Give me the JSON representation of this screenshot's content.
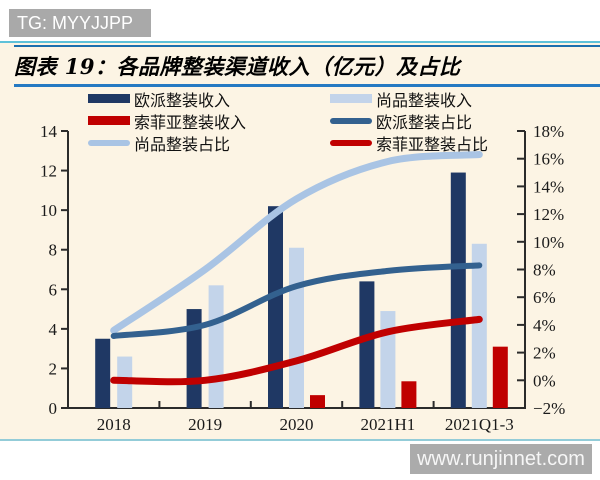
{
  "header": {
    "badge": "TG: MYYJJPP",
    "title": "图表 19：各品牌整装渠道收入（亿元）及占比"
  },
  "footer": {
    "watermark": "www.runjinnet.com"
  },
  "colors": {
    "card_bg": "#fcf4e4",
    "rule_cyan": "#5ec1d9",
    "rule_navy": "#1c6fae",
    "title_underline": "#2579c2",
    "card_bottom_border": "#93ccd8",
    "badge_bg": "#a9a9a9",
    "watermark_bg": "#ababab",
    "axis": "#2b2b2b",
    "navy_bar": "#1f3864",
    "light_blue_bar": "#c3d4ea",
    "red": "#c00000",
    "steel_line": "#33618f",
    "light_blue_line": "#a9c4e4"
  },
  "legend": [
    {
      "label": "欧派整装收入",
      "swatch": "bar",
      "color": "#1f3864"
    },
    {
      "label": "尚品整装收入",
      "swatch": "bar",
      "color": "#c3d4ea"
    },
    {
      "label": "索菲亚整装收入",
      "swatch": "bar",
      "color": "#c00000"
    },
    {
      "label": "欧派整装占比",
      "swatch": "line",
      "color": "#33618f"
    },
    {
      "label": "尚品整装占比",
      "swatch": "line",
      "color": "#a9c4e4"
    },
    {
      "label": "索菲亚整装占比",
      "swatch": "line",
      "color": "#c00000"
    }
  ],
  "chart_data": {
    "type": "combo bar+line, dual axis",
    "categories": [
      "2018",
      "2019",
      "2020",
      "2021H1",
      "2021Q1-3"
    ],
    "bar_series": [
      {
        "name": "欧派整装收入",
        "color": "#1f3864",
        "axis": "left",
        "values": [
          3.5,
          5.0,
          10.2,
          6.4,
          11.9
        ]
      },
      {
        "name": "尚品整装收入",
        "color": "#c3d4ea",
        "axis": "left",
        "values": [
          2.6,
          6.2,
          8.1,
          4.9,
          8.3
        ]
      },
      {
        "name": "索菲亚整装收入",
        "color": "#c00000",
        "axis": "left",
        "values": [
          null,
          null,
          0.65,
          1.35,
          3.1
        ]
      }
    ],
    "line_series": [
      {
        "name": "尚品整装占比",
        "color": "#a9c4e4",
        "stroke_width": 7,
        "axis": "right",
        "values": [
          3.6,
          8.0,
          13.1,
          15.8,
          16.3
        ]
      },
      {
        "name": "欧派整装占比",
        "color": "#33618f",
        "stroke_width": 6,
        "axis": "right",
        "values": [
          3.2,
          4.0,
          6.8,
          7.9,
          8.3
        ]
      },
      {
        "name": "索菲亚整装占比",
        "color": "#c00000",
        "stroke_width": 7,
        "axis": "right",
        "values": [
          0.0,
          0.0,
          1.4,
          3.5,
          4.4
        ]
      }
    ],
    "left_axis": {
      "min": 0,
      "max": 14,
      "step": 2,
      "unit": "亿元",
      "labels": [
        "0",
        "2",
        "4",
        "6",
        "8",
        "10",
        "12",
        "14"
      ]
    },
    "right_axis": {
      "min": -2,
      "max": 18,
      "step": 2,
      "unit": "%",
      "labels": [
        "−2%",
        "0%",
        "2%",
        "4%",
        "6%",
        "8%",
        "10%",
        "12%",
        "14%",
        "16%",
        "18%"
      ]
    },
    "grid": false,
    "legend_position": "top"
  }
}
